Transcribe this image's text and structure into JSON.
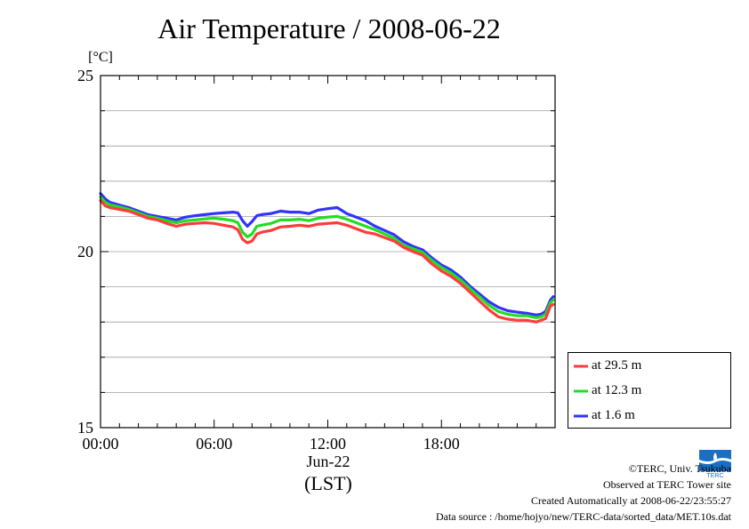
{
  "colors": {
    "series_29_5": "#ff3b3b",
    "series_12_3": "#22dd22",
    "series_1_6": "#3333ff",
    "grid": "#a0a0a0",
    "axis": "#000000",
    "logo": "#1a6fc4"
  },
  "logo": {
    "icon": "terc-logo-icon",
    "text": "TERC"
  },
  "credits": {
    "copyright": "©TERC, Univ. Tsukuba",
    "site": "Observed at TERC Tower site",
    "created": "Created Automatically at 2008-06-22/23:55:27",
    "source": "Data source : /home/hojyo/new/TERC-data/sorted_data/MET.10s.dat"
  },
  "chart_data": {
    "type": "line",
    "title": "Air Temperature / 2008-06-22",
    "ylabel": "[°C]",
    "xlabel": "(LST)",
    "x_date_label": "Jun-22",
    "ylim": [
      15,
      25
    ],
    "xlim": [
      0,
      24
    ],
    "yticks": [
      15,
      20,
      25
    ],
    "yticks_minor": [
      16,
      17,
      18,
      19,
      21,
      22,
      23,
      24
    ],
    "xticks": [
      0,
      6,
      12,
      18
    ],
    "xtick_labels": [
      "00:00",
      "06:00",
      "12:00",
      "18:00"
    ],
    "grid": true,
    "legend_position": "lower-right-outside",
    "x": [
      0.0,
      0.25,
      0.5,
      1.0,
      1.5,
      2.0,
      2.5,
      3.0,
      3.5,
      4.0,
      4.5,
      5.0,
      5.5,
      6.0,
      6.5,
      7.0,
      7.25,
      7.5,
      7.75,
      8.0,
      8.25,
      8.5,
      9.0,
      9.5,
      10.0,
      10.5,
      11.0,
      11.5,
      12.0,
      12.5,
      13.0,
      13.5,
      14.0,
      14.5,
      15.0,
      15.5,
      16.0,
      16.5,
      17.0,
      17.5,
      18.0,
      18.5,
      19.0,
      19.5,
      20.0,
      20.5,
      21.0,
      21.5,
      22.0,
      22.5,
      23.0,
      23.25,
      23.5,
      23.75,
      23.9
    ],
    "series": [
      {
        "name": "at 29.5 m",
        "color": "#ff3b3b",
        "values": [
          21.45,
          21.3,
          21.25,
          21.2,
          21.15,
          21.05,
          20.95,
          20.9,
          20.8,
          20.72,
          20.78,
          20.8,
          20.82,
          20.8,
          20.75,
          20.7,
          20.62,
          20.35,
          20.25,
          20.3,
          20.5,
          20.55,
          20.6,
          20.7,
          20.72,
          20.75,
          20.72,
          20.78,
          20.8,
          20.82,
          20.75,
          20.65,
          20.55,
          20.5,
          20.4,
          20.3,
          20.12,
          20.0,
          19.9,
          19.65,
          19.45,
          19.3,
          19.1,
          18.85,
          18.6,
          18.35,
          18.15,
          18.08,
          18.05,
          18.05,
          18.0,
          18.05,
          18.1,
          18.45,
          18.5
        ]
      },
      {
        "name": "at 12.3 m",
        "color": "#22dd22",
        "values": [
          21.55,
          21.4,
          21.33,
          21.27,
          21.2,
          21.1,
          21.0,
          20.95,
          20.88,
          20.82,
          20.88,
          20.9,
          20.93,
          20.95,
          20.92,
          20.88,
          20.82,
          20.55,
          20.42,
          20.5,
          20.72,
          20.75,
          20.8,
          20.9,
          20.9,
          20.92,
          20.88,
          20.95,
          20.98,
          21.0,
          20.92,
          20.82,
          20.72,
          20.62,
          20.5,
          20.38,
          20.18,
          20.08,
          19.98,
          19.75,
          19.55,
          19.4,
          19.2,
          18.95,
          18.72,
          18.48,
          18.3,
          18.22,
          18.18,
          18.18,
          18.12,
          18.15,
          18.22,
          18.55,
          18.62
        ]
      },
      {
        "name": "at 1.6 m",
        "color": "#3333ff",
        "values": [
          21.65,
          21.5,
          21.4,
          21.32,
          21.25,
          21.15,
          21.05,
          21.0,
          20.95,
          20.9,
          20.98,
          21.02,
          21.05,
          21.08,
          21.1,
          21.12,
          21.1,
          20.88,
          20.72,
          20.85,
          21.02,
          21.05,
          21.08,
          21.15,
          21.12,
          21.12,
          21.08,
          21.18,
          21.22,
          21.25,
          21.08,
          20.98,
          20.88,
          20.72,
          20.6,
          20.48,
          20.28,
          20.15,
          20.05,
          19.82,
          19.62,
          19.48,
          19.28,
          19.02,
          18.8,
          18.58,
          18.42,
          18.32,
          18.28,
          18.25,
          18.2,
          18.22,
          18.3,
          18.62,
          18.72
        ]
      }
    ]
  }
}
